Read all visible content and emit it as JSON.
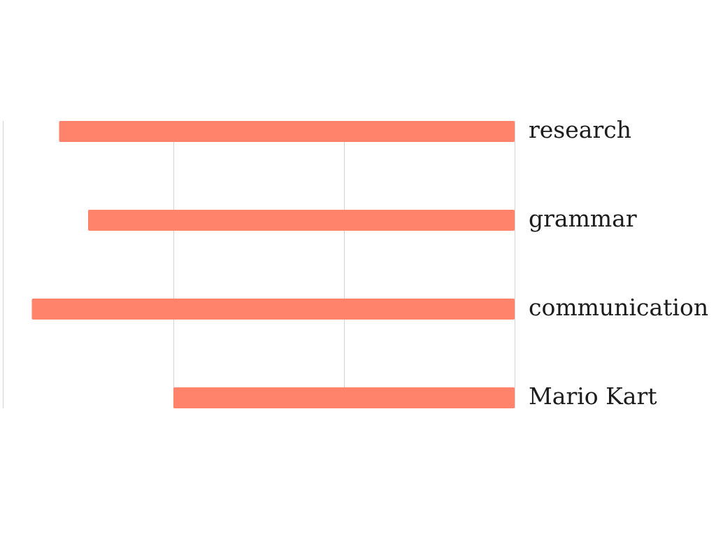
{
  "chart_data": {
    "type": "bar",
    "orientation": "horizontal",
    "x_direction": "reversed",
    "categories": [
      "research",
      "grammar",
      "communication",
      "Mario Kart"
    ],
    "values": [
      2.67,
      2.5,
      2.83,
      2.0
    ],
    "xlim": [
      0,
      3
    ],
    "grid": true,
    "axis_labels_visible": false,
    "colors": {
      "bar": "#ff826b",
      "grid": "#d4d4d4",
      "label": "#1c1c1c"
    }
  }
}
